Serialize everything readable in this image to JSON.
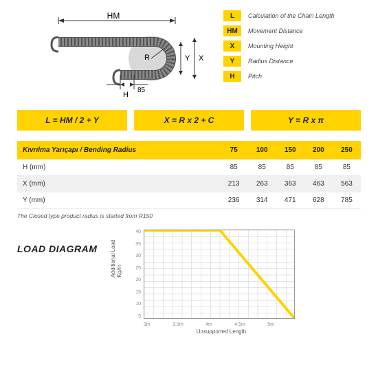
{
  "legend": [
    {
      "badge": "L",
      "label": "Calculation of the Chain Length"
    },
    {
      "badge": "HM",
      "label": "Movement Distance"
    },
    {
      "badge": "X",
      "label": "Mounting Height"
    },
    {
      "badge": "Y",
      "label": "Radius Distance"
    },
    {
      "badge": "H",
      "label": "Pitch"
    }
  ],
  "diagram": {
    "hm_label": "HM",
    "r_label": "R",
    "h_label": "H",
    "y_label": "Y",
    "x_label": "X",
    "dim85": "85"
  },
  "formulas": [
    "L = HM / 2 + Y",
    "X = R x 2 + C",
    "Y = R x π"
  ],
  "table": {
    "header_label": "Kıvrılma Yarıçapı / Bending Radius",
    "cols": [
      "75",
      "100",
      "150",
      "200",
      "250"
    ],
    "rows": [
      {
        "label": "H (mm)",
        "vals": [
          "85",
          "85",
          "85",
          "85",
          "85"
        ],
        "shaded": false
      },
      {
        "label": "X (mm)",
        "vals": [
          "213",
          "263",
          "363",
          "463",
          "563"
        ],
        "shaded": true
      },
      {
        "label": "Y (mm)",
        "vals": [
          "236",
          "314",
          "471",
          "628",
          "785"
        ],
        "shaded": false
      }
    ]
  },
  "note": "The Closed type product radius is started from R150",
  "load": {
    "title": "LOAD DIAGRAM",
    "ylabel": "Additional Load\nKg/m",
    "xlabel": "Unsupported Length",
    "yticks": [
      "40",
      "35",
      "30",
      "25",
      "20",
      "15",
      "10",
      "5"
    ],
    "xticks": [
      "3m",
      "3.5m",
      "4m",
      "4.5m",
      "5m"
    ],
    "ylim": [
      5,
      40
    ],
    "xlim": [
      3,
      5
    ],
    "line_color": "#ffd200",
    "line_width": 4,
    "grid_color": "#cccccc",
    "points": [
      [
        3,
        40
      ],
      [
        4,
        40
      ],
      [
        5,
        5
      ]
    ]
  }
}
